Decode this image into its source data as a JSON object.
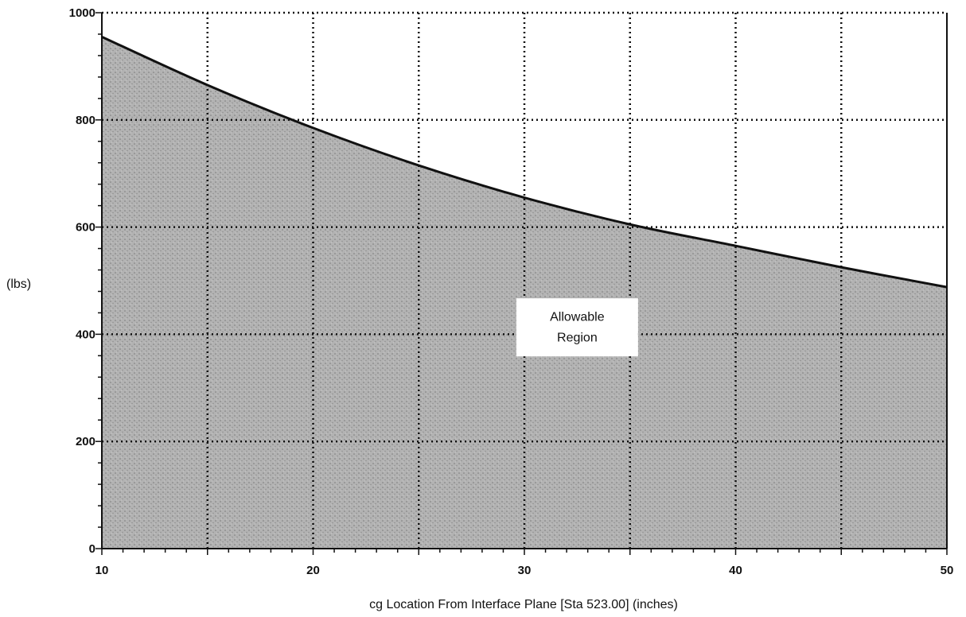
{
  "chart_data": {
    "type": "area",
    "title": "",
    "xlabel": "cg Location From Interface Plane [Sta 523.00] (inches)",
    "ylabel": "(lbs)",
    "xlim": [
      10,
      50
    ],
    "ylim": [
      0,
      1000
    ],
    "x_ticks": [
      10,
      20,
      30,
      40,
      50
    ],
    "x_tick_labels": [
      "10",
      "20",
      "30",
      "40",
      "50"
    ],
    "y_ticks": [
      0,
      200,
      400,
      600,
      800,
      1000
    ],
    "y_tick_labels": [
      "0",
      "200",
      "400",
      "600",
      "800",
      "1000"
    ],
    "x_gridlines": [
      15,
      20,
      25,
      30,
      35,
      40,
      45
    ],
    "y_gridlines": [
      200,
      400,
      600,
      800,
      1000
    ],
    "grid": true,
    "series": [
      {
        "x": [
          10,
          15,
          20,
          25,
          30,
          35,
          40,
          45,
          50
        ],
        "y": [
          955,
          865,
          785,
          715,
          655,
          605,
          565,
          525,
          488
        ]
      }
    ],
    "fill_color": "#a9a9a9",
    "line_color": "#111111",
    "annotation": {
      "lines": [
        "Allowable",
        "Region"
      ],
      "x": 32.5,
      "y": 410
    }
  }
}
